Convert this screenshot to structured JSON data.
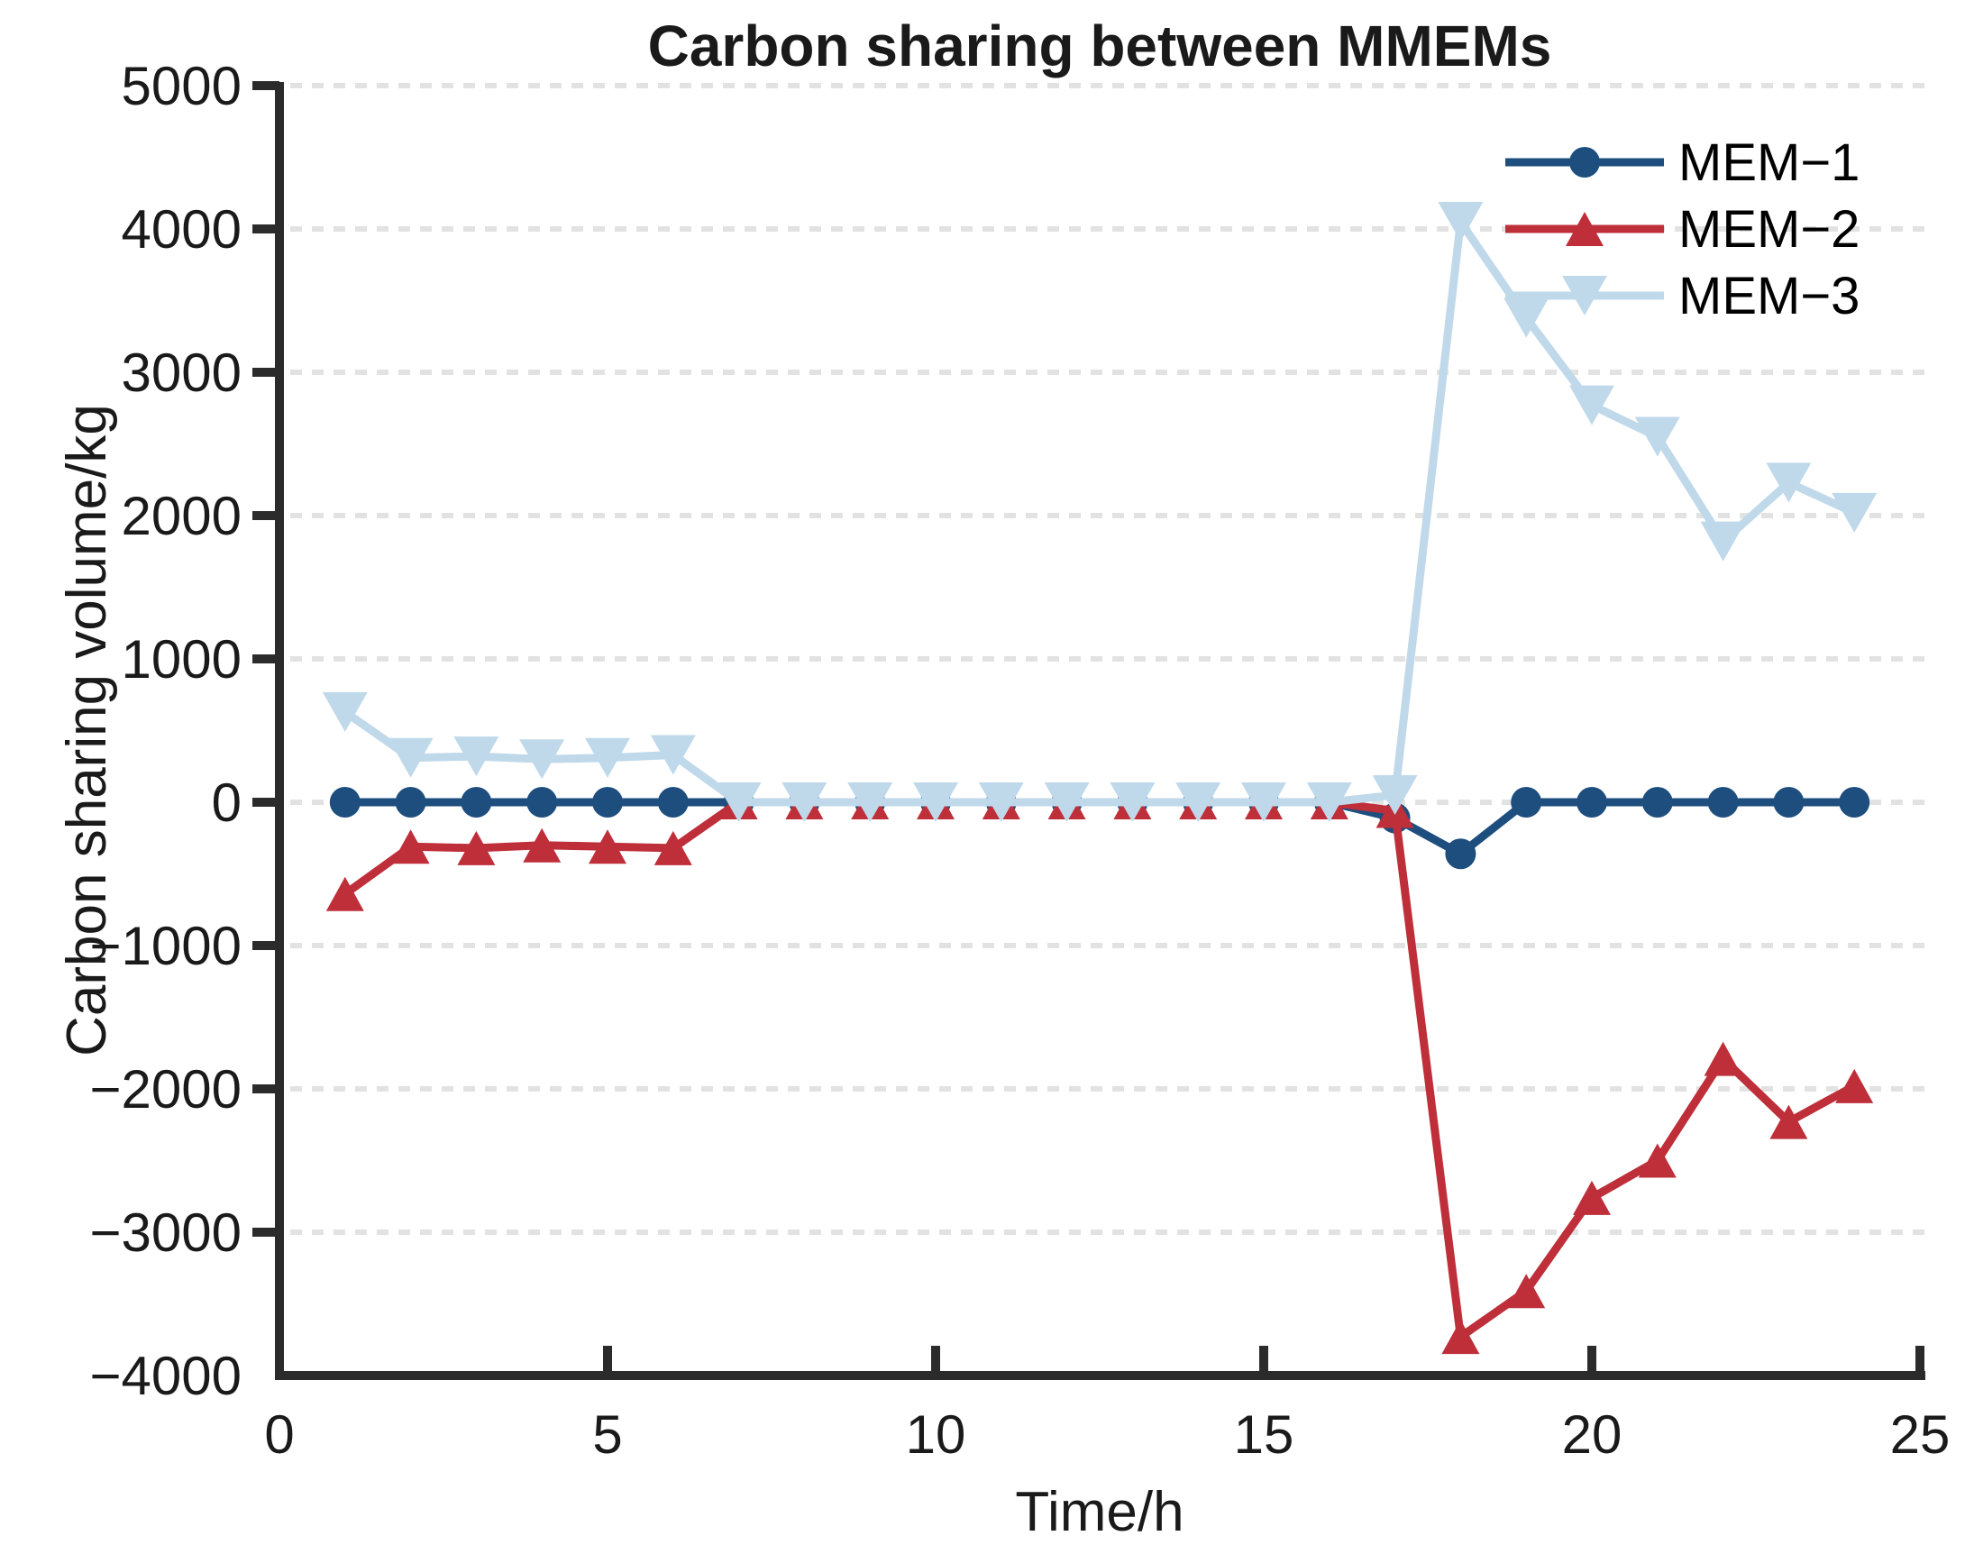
{
  "figure": {
    "background": "#ffffff",
    "text_color": "#1a1a1a",
    "axis_color": "#2b2b2b",
    "grid_color": "#e2e2e2"
  },
  "chart_data": {
    "type": "line",
    "title": "Carbon sharing between MMEMs",
    "xlabel": "Time/h",
    "ylabel": "Carbon sharing volume/kg",
    "xlim": [
      0,
      25
    ],
    "ylim": [
      -4000,
      5000
    ],
    "xticks": [
      0,
      5,
      10,
      15,
      20,
      25
    ],
    "xtick_labels": [
      "0",
      "5",
      "10",
      "15",
      "20",
      "25"
    ],
    "yticks": [
      5000,
      4000,
      3000,
      2000,
      1000,
      0,
      -1000,
      -2000,
      -3000,
      -4000
    ],
    "ytick_labels": [
      "5000",
      "4000",
      "3000",
      "2000",
      "1000",
      "0",
      "−1000",
      "−2000",
      "−3000",
      "−4000"
    ],
    "grid": "horizontal-dotted",
    "legend_position": "upper-right",
    "x": [
      1,
      2,
      3,
      4,
      5,
      6,
      7,
      8,
      9,
      10,
      11,
      12,
      13,
      14,
      15,
      16,
      17,
      18,
      19,
      20,
      21,
      22,
      23,
      24
    ],
    "series": [
      {
        "name": "MEM−1",
        "color": "#1d4e7e",
        "marker": "circle",
        "values": [
          0,
          0,
          0,
          0,
          0,
          0,
          0,
          0,
          0,
          0,
          0,
          0,
          0,
          0,
          0,
          0,
          -110,
          -360,
          0,
          0,
          0,
          0,
          0,
          0
        ]
      },
      {
        "name": "MEM−2",
        "color": "#be2f3a",
        "marker": "triangle-up",
        "values": [
          -640,
          -310,
          -320,
          -300,
          -310,
          -320,
          0,
          0,
          0,
          0,
          0,
          0,
          0,
          0,
          0,
          0,
          -60,
          -3730,
          -3410,
          -2760,
          -2500,
          -1790,
          -2230,
          -1980
        ]
      },
      {
        "name": "MEM−3",
        "color": "#c0d9ea",
        "marker": "triangle-down",
        "values": [
          630,
          310,
          320,
          300,
          310,
          330,
          0,
          0,
          0,
          0,
          0,
          0,
          0,
          0,
          0,
          0,
          50,
          4050,
          3380,
          2770,
          2550,
          1820,
          2230,
          2020
        ]
      }
    ]
  }
}
